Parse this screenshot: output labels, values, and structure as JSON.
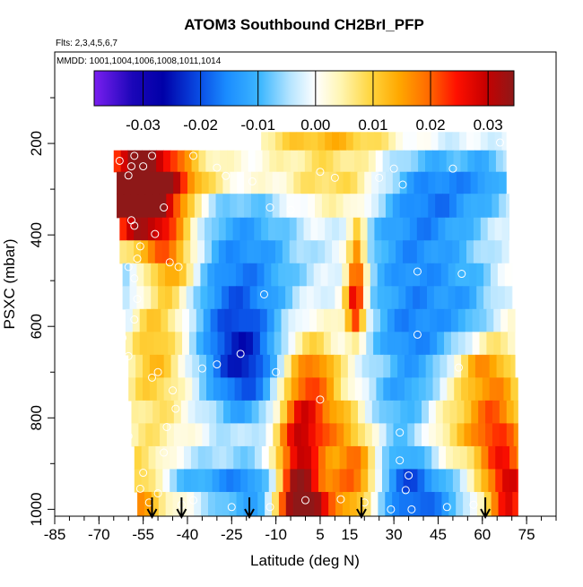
{
  "chart_data": {
    "type": "heatmap",
    "title": "ATOM3 Southbound CH2BrI_PFP",
    "subtitle_flights": "Flts: 2,3,4,5,6,7",
    "subtitle_dates": "MMDD: 1001,1004,1006,1008,1011,1014",
    "xlabel": "Latitude (deg N)",
    "ylabel": "PSXC (mbar)",
    "xlim": [
      -85,
      85
    ],
    "ylim": [
      1015,
      0
    ],
    "x_ticks": [
      -85,
      -70,
      -55,
      -40,
      -25,
      -10,
      5,
      15,
      30,
      45,
      60,
      75
    ],
    "x_tick_labels": [
      "-85",
      "-70",
      "-55",
      "-40",
      "-25",
      "-10",
      "5",
      "15",
      "30",
      "45",
      "60",
      "75"
    ],
    "y_ticks": [
      200,
      400,
      600,
      800,
      1000
    ],
    "y_tick_labels": [
      "200",
      "400",
      "600",
      "800",
      "1000"
    ],
    "colorbar": {
      "range": [
        -0.0385,
        0.0345
      ],
      "ticks": [
        -0.03,
        -0.02,
        -0.01,
        0.0,
        0.01,
        0.02,
        0.03
      ],
      "tick_labels": [
        "-0.03",
        "-0.02",
        "-0.01",
        "0.00",
        "0.01",
        "0.02",
        "0.03"
      ],
      "colors": [
        "#7b2be0",
        "#0000a0",
        "#1a8cff",
        "#ffffff",
        "#ffd23c",
        "#ff8c00",
        "#e00000",
        "#8b1a1a"
      ]
    },
    "pressure_bins": [
      {
        "p_top": 175,
        "p_bot": 215,
        "lat_min": -15,
        "lat_max": 68
      },
      {
        "p_top": 215,
        "p_bot": 262,
        "lat_min": -65,
        "lat_max": 68
      },
      {
        "p_top": 262,
        "p_bot": 310,
        "lat_min": -64,
        "lat_max": 68
      },
      {
        "p_top": 310,
        "p_bot": 362,
        "lat_min": -64,
        "lat_max": 69
      },
      {
        "p_top": 362,
        "p_bot": 412,
        "lat_min": -63,
        "lat_max": 69
      },
      {
        "p_top": 412,
        "p_bot": 462,
        "lat_min": -63,
        "lat_max": 69
      },
      {
        "p_top": 462,
        "p_bot": 512,
        "lat_min": -62,
        "lat_max": 70
      },
      {
        "p_top": 512,
        "p_bot": 562,
        "lat_min": -62,
        "lat_max": 70
      },
      {
        "p_top": 562,
        "p_bot": 612,
        "lat_min": -61,
        "lat_max": 71
      },
      {
        "p_top": 612,
        "p_bot": 662,
        "lat_min": -61,
        "lat_max": 71
      },
      {
        "p_top": 662,
        "p_bot": 712,
        "lat_min": -60,
        "lat_max": 71
      },
      {
        "p_top": 712,
        "p_bot": 762,
        "lat_min": -60,
        "lat_max": 72
      },
      {
        "p_top": 762,
        "p_bot": 812,
        "lat_min": -59,
        "lat_max": 72
      },
      {
        "p_top": 812,
        "p_bot": 862,
        "lat_min": -59,
        "lat_max": 72
      },
      {
        "p_top": 862,
        "p_bot": 912,
        "lat_min": -58,
        "lat_max": 72
      },
      {
        "p_top": 912,
        "p_bot": 962,
        "lat_min": -58,
        "lat_max": 72
      },
      {
        "p_top": 962,
        "p_bot": 1015,
        "lat_min": -57,
        "lat_max": 72
      }
    ],
    "anomaly_features": [
      {
        "lat": -58,
        "p": 340,
        "dlat": 9,
        "dp": 80,
        "value": 0.034
      },
      {
        "lat": -58,
        "p": 280,
        "dlat": 8,
        "dp": 40,
        "value": 0.018
      },
      {
        "lat": -48,
        "p": 330,
        "dlat": 9,
        "dp": 140,
        "value": 0.014
      },
      {
        "lat": -35,
        "p": 275,
        "dlat": 20,
        "dp": 30,
        "value": 0.01
      },
      {
        "lat": -45,
        "p": 470,
        "dlat": 6,
        "dp": 40,
        "value": 0.008
      },
      {
        "lat": -50,
        "p": 660,
        "dlat": 8,
        "dp": 120,
        "value": 0.012
      },
      {
        "lat": -56,
        "p": 960,
        "dlat": 7,
        "dp": 60,
        "value": 0.017
      },
      {
        "lat": -55,
        "p": 470,
        "dlat": 5,
        "dp": 60,
        "value": -0.014
      },
      {
        "lat": -62,
        "p": 490,
        "dlat": 3,
        "dp": 120,
        "value": -0.01
      },
      {
        "lat": -22,
        "p": 410,
        "dlat": 14,
        "dp": 130,
        "value": -0.012
      },
      {
        "lat": -26,
        "p": 620,
        "dlat": 12,
        "dp": 120,
        "value": -0.014
      },
      {
        "lat": -20,
        "p": 700,
        "dlat": 8,
        "dp": 80,
        "value": -0.014
      },
      {
        "lat": -40,
        "p": 930,
        "dlat": 16,
        "dp": 30,
        "value": -0.012
      },
      {
        "lat": -20,
        "p": 970,
        "dlat": 14,
        "dp": 50,
        "value": -0.014
      },
      {
        "lat": -3,
        "p": 900,
        "dlat": 5,
        "dp": 130,
        "value": 0.024
      },
      {
        "lat": -1,
        "p": 985,
        "dlat": 6,
        "dp": 40,
        "value": 0.028
      },
      {
        "lat": 3,
        "p": 770,
        "dlat": 6,
        "dp": 110,
        "value": 0.014
      },
      {
        "lat": 14,
        "p": 830,
        "dlat": 7,
        "dp": 70,
        "value": 0.012
      },
      {
        "lat": 18,
        "p": 920,
        "dlat": 5,
        "dp": 40,
        "value": 0.016
      },
      {
        "lat": 13,
        "p": 985,
        "dlat": 7,
        "dp": 35,
        "value": 0.012
      },
      {
        "lat": 17,
        "p": 520,
        "dlat": 2.5,
        "dp": 60,
        "value": 0.026
      },
      {
        "lat": 18,
        "p": 420,
        "dlat": 2,
        "dp": 45,
        "value": 0.014
      },
      {
        "lat": 17,
        "p": 580,
        "dlat": 2,
        "dp": 30,
        "value": 0.012
      },
      {
        "lat": 12,
        "p": 190,
        "dlat": 25,
        "dp": 30,
        "value": 0.012
      },
      {
        "lat": 15,
        "p": 290,
        "dlat": 15,
        "dp": 45,
        "value": 0.01
      },
      {
        "lat": 28,
        "p": 690,
        "dlat": 8,
        "dp": 40,
        "value": 0.009
      },
      {
        "lat": 5,
        "p": 690,
        "dlat": 6,
        "dp": 30,
        "value": 0.006
      },
      {
        "lat": 20,
        "p": 600,
        "dlat": 8,
        "dp": 60,
        "value": 0.004
      },
      {
        "lat": 37,
        "p": 480,
        "dlat": 14,
        "dp": 220,
        "value": -0.016
      },
      {
        "lat": 30,
        "p": 700,
        "dlat": 10,
        "dp": 80,
        "value": -0.012
      },
      {
        "lat": 42,
        "p": 980,
        "dlat": 12,
        "dp": 50,
        "value": -0.014
      },
      {
        "lat": 34,
        "p": 930,
        "dlat": 8,
        "dp": 60,
        "value": -0.012
      },
      {
        "lat": 50,
        "p": 300,
        "dlat": 16,
        "dp": 60,
        "value": -0.01
      },
      {
        "lat": 58,
        "p": 570,
        "dlat": 8,
        "dp": 90,
        "value": -0.008
      },
      {
        "lat": 47,
        "p": 880,
        "dlat": 8,
        "dp": 60,
        "value": 0.004
      },
      {
        "lat": 65,
        "p": 860,
        "dlat": 6,
        "dp": 160,
        "value": 0.018
      },
      {
        "lat": 70,
        "p": 960,
        "dlat": 4,
        "dp": 60,
        "value": 0.018
      },
      {
        "lat": 58,
        "p": 680,
        "dlat": 6,
        "dp": 40,
        "value": 0.012
      },
      {
        "lat": 52,
        "p": 750,
        "dlat": 8,
        "dp": 60,
        "value": 0.008
      },
      {
        "lat": 62,
        "p": 260,
        "dlat": 6,
        "dp": 40,
        "value": -0.006
      },
      {
        "lat": 55,
        "p": 830,
        "dlat": 10,
        "dp": 40,
        "value": 0.006
      },
      {
        "lat": -5,
        "p": 490,
        "dlat": 10,
        "dp": 80,
        "value": -0.003
      },
      {
        "lat": -35,
        "p": 960,
        "dlat": 8,
        "dp": 40,
        "value": 0.006
      }
    ],
    "samples": [
      {
        "lat": -58,
        "p": 227
      },
      {
        "lat": -52,
        "p": 227
      },
      {
        "lat": -38,
        "p": 227
      },
      {
        "lat": -63,
        "p": 238
      },
      {
        "lat": -55,
        "p": 250
      },
      {
        "lat": -59,
        "p": 250
      },
      {
        "lat": -30,
        "p": 253
      },
      {
        "lat": -60,
        "p": 270
      },
      {
        "lat": -27,
        "p": 271
      },
      {
        "lat": -18,
        "p": 283
      },
      {
        "lat": 5,
        "p": 262
      },
      {
        "lat": 10,
        "p": 275
      },
      {
        "lat": 25,
        "p": 275
      },
      {
        "lat": 30,
        "p": 255
      },
      {
        "lat": 50,
        "p": 255
      },
      {
        "lat": 66,
        "p": 198
      },
      {
        "lat": 33,
        "p": 290
      },
      {
        "lat": -48,
        "p": 340
      },
      {
        "lat": -12,
        "p": 340
      },
      {
        "lat": -5,
        "p": 345
      },
      {
        "lat": -59,
        "p": 368
      },
      {
        "lat": -58,
        "p": 380
      },
      {
        "lat": -51,
        "p": 398
      },
      {
        "lat": -56,
        "p": 425
      },
      {
        "lat": -57,
        "p": 452
      },
      {
        "lat": -46,
        "p": 460
      },
      {
        "lat": -43,
        "p": 470
      },
      {
        "lat": -58,
        "p": 495
      },
      {
        "lat": -60,
        "p": 470
      },
      {
        "lat": 38,
        "p": 480
      },
      {
        "lat": 53,
        "p": 485
      },
      {
        "lat": -14,
        "p": 530
      },
      {
        "lat": -57,
        "p": 540
      },
      {
        "lat": -58,
        "p": 585
      },
      {
        "lat": -62,
        "p": 625
      },
      {
        "lat": 38,
        "p": 618
      },
      {
        "lat": -60,
        "p": 665
      },
      {
        "lat": -30,
        "p": 683
      },
      {
        "lat": -22,
        "p": 660
      },
      {
        "lat": -50,
        "p": 700
      },
      {
        "lat": -52,
        "p": 712
      },
      {
        "lat": -35,
        "p": 692
      },
      {
        "lat": 52,
        "p": 690
      },
      {
        "lat": -45,
        "p": 740
      },
      {
        "lat": -10,
        "p": 700
      },
      {
        "lat": 5,
        "p": 760
      },
      {
        "lat": -44,
        "p": 780
      },
      {
        "lat": -47,
        "p": 820
      },
      {
        "lat": -60,
        "p": 840
      },
      {
        "lat": 32,
        "p": 832
      },
      {
        "lat": -48,
        "p": 876
      },
      {
        "lat": 32,
        "p": 893
      },
      {
        "lat": -55,
        "p": 920
      },
      {
        "lat": 35,
        "p": 926
      },
      {
        "lat": -62,
        "p": 955
      },
      {
        "lat": -56,
        "p": 955
      },
      {
        "lat": -50,
        "p": 965
      },
      {
        "lat": 34,
        "p": 958
      },
      {
        "lat": -53,
        "p": 985
      },
      {
        "lat": -42,
        "p": 990
      },
      {
        "lat": -25,
        "p": 995
      },
      {
        "lat": -12,
        "p": 995
      },
      {
        "lat": 12,
        "p": 978
      },
      {
        "lat": 20,
        "p": 985
      },
      {
        "lat": 29,
        "p": 1000
      },
      {
        "lat": 36,
        "p": 1000
      },
      {
        "lat": 48,
        "p": 995
      },
      {
        "lat": 57,
        "p": 990
      },
      {
        "lat": 0,
        "p": 980
      },
      {
        "lat": -38,
        "p": 980
      }
    ],
    "arrows_lat": [
      -52,
      -42,
      -19,
      19,
      61
    ]
  }
}
